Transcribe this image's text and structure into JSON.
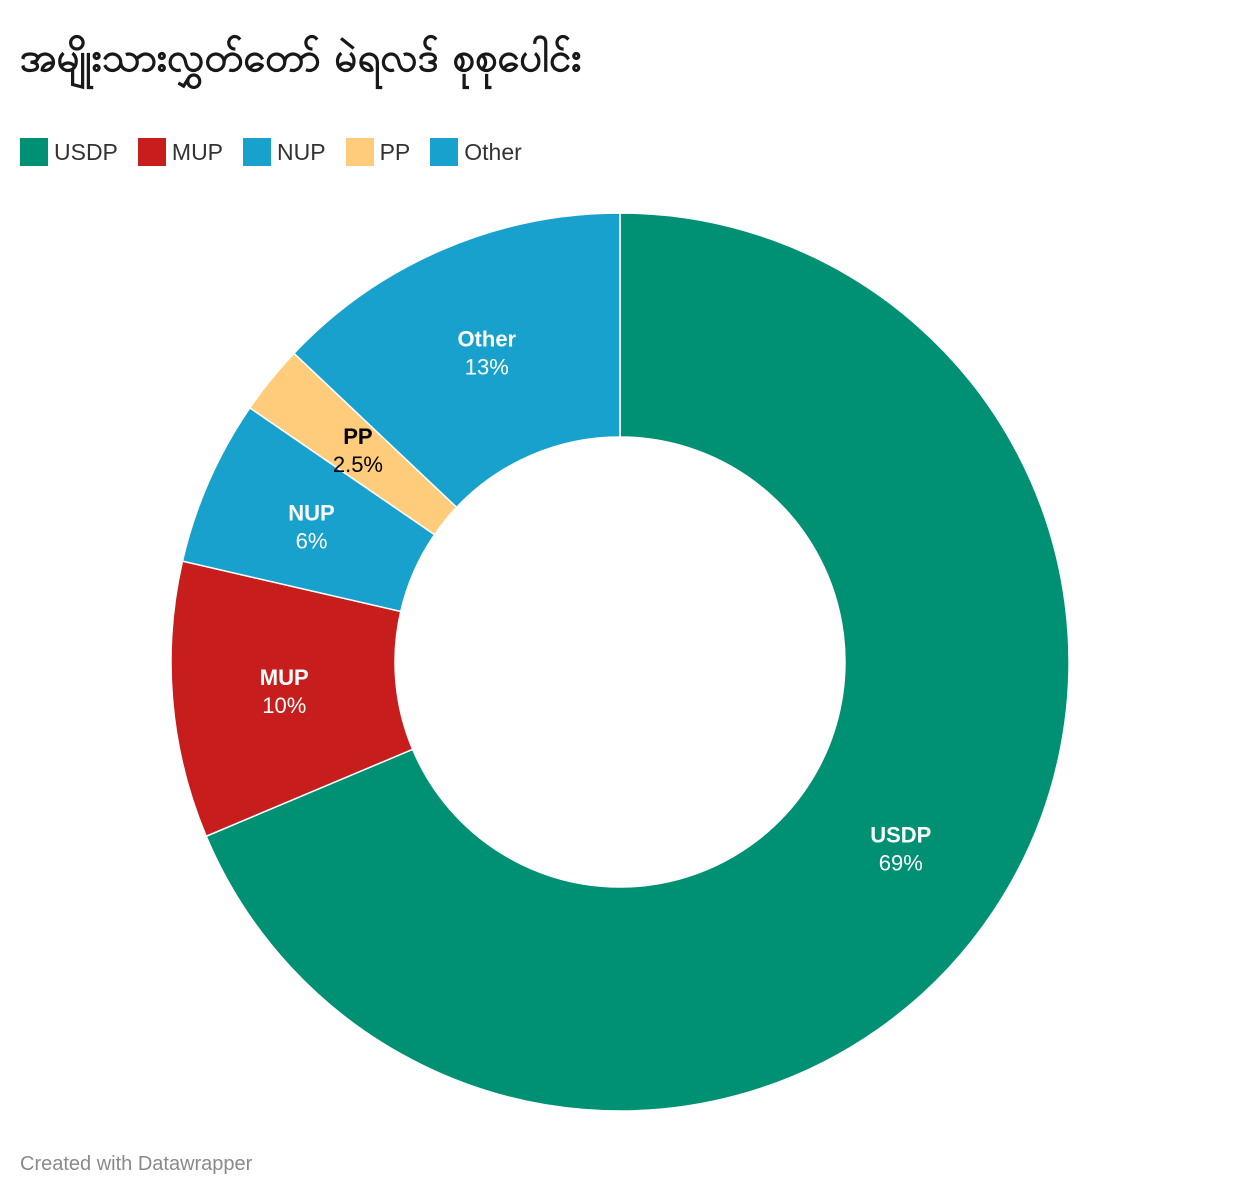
{
  "title": "အမျိုးသားလွှတ်တော် မဲရလဒ် စုစုပေါင်း",
  "footer": "Created with Datawrapper",
  "chart_data": {
    "type": "pie",
    "variant": "donut",
    "title": "အမျိုးသားလွှတ်တော် မဲရလဒ် စုစုပေါင်း",
    "legend_position": "top-left",
    "categories": [
      "USDP",
      "MUP",
      "NUP",
      "PP",
      "Other"
    ],
    "values": [
      69,
      10,
      6,
      2.5,
      13
    ],
    "value_labels": [
      "69%",
      "10%",
      "6%",
      "2.5%",
      "13%"
    ],
    "colors": [
      "#009073",
      "#c71e1d",
      "#18a1cd",
      "#fecc7a",
      "#18a1cd"
    ],
    "label_colors": [
      "#ffffff",
      "#ffffff",
      "#ffffff",
      "#000000",
      "#ffffff"
    ]
  }
}
